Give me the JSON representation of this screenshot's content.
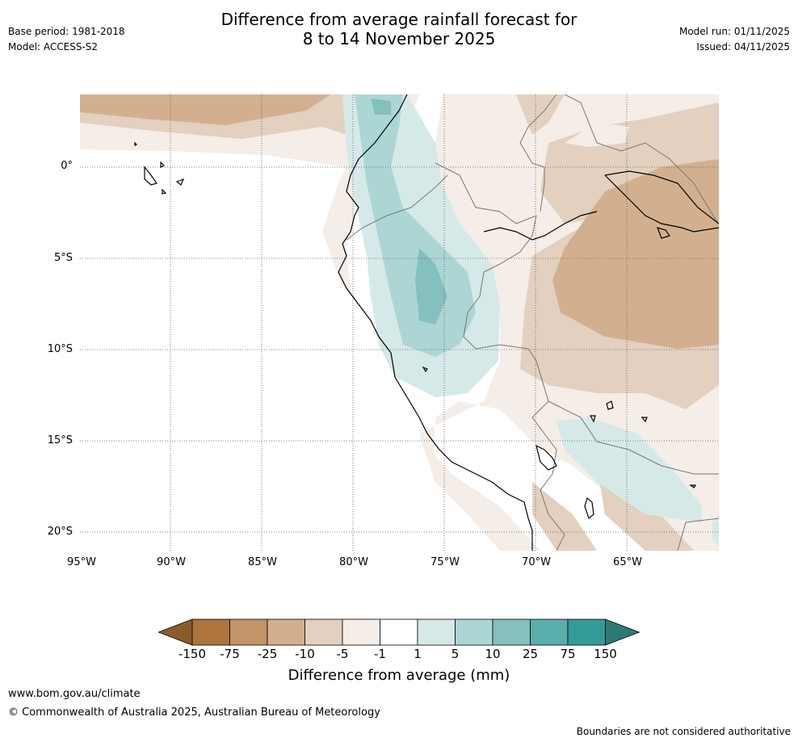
{
  "header": {
    "title_line1": "Difference from average rainfall forecast for",
    "title_line2": "8 to 14 November 2025",
    "base_period": "Base period: 1981-2018",
    "model": "Model: ACCESS-S2",
    "model_run": "Model run: 01/11/2025",
    "issued": "Issued: 04/11/2025"
  },
  "map": {
    "lon_labels": [
      "95°W",
      "90°W",
      "85°W",
      "80°W",
      "75°W",
      "70°W",
      "65°W"
    ],
    "lat_labels": [
      "0°",
      "5°S",
      "10°S",
      "15°S",
      "20°S"
    ],
    "extent": {
      "lon_min": -95,
      "lon_max": -60,
      "lat_min": -21,
      "lat_max": 4
    }
  },
  "colorbar": {
    "title": "Difference from average (mm)",
    "tick_labels": [
      "-150",
      "-75",
      "-25",
      "-10",
      "-5",
      "-1",
      "1",
      "5",
      "10",
      "25",
      "75",
      "150"
    ],
    "colors": [
      "#8c5a2b",
      "#ad743b",
      "#c29468",
      "#d2b08f",
      "#e3d0bf",
      "#f4ede8",
      "#ffffff",
      "#d5e9e8",
      "#acd6d4",
      "#83c0be",
      "#5aaeab",
      "#339c99",
      "#2b7a78"
    ]
  },
  "footer": {
    "website": "www.bom.gov.au/climate",
    "copyright": "© Commonwealth of Australia 2025, Australian Bureau of Meteorology",
    "disclaimer": "Boundaries are not considered authoritative"
  }
}
